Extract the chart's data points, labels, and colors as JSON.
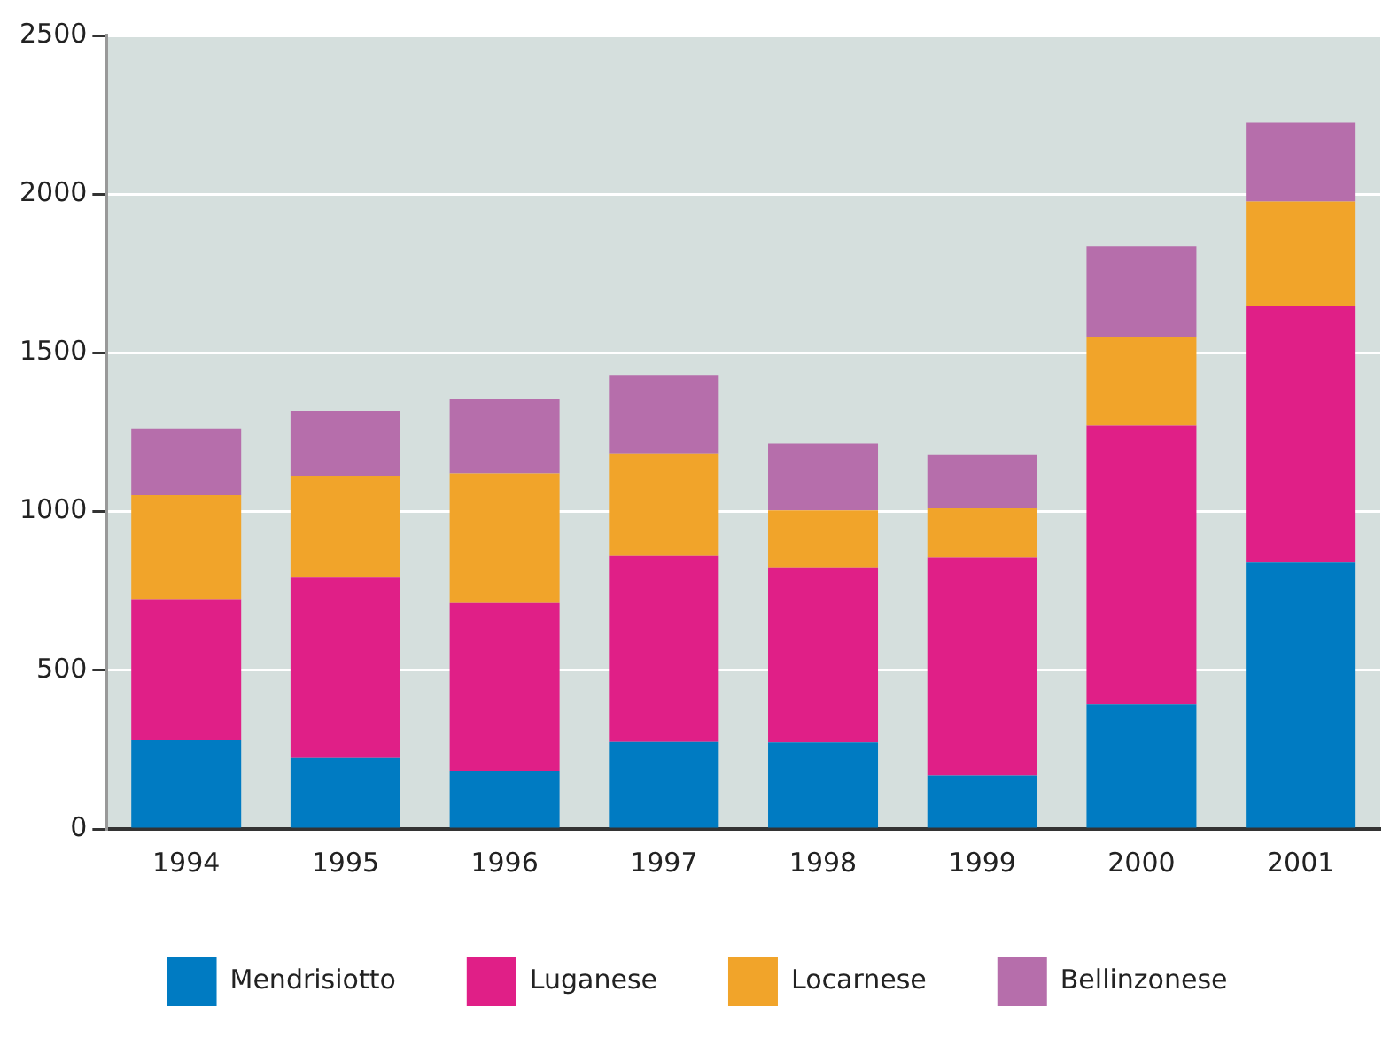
{
  "chart_data": {
    "type": "bar",
    "stacked": true,
    "categories": [
      "1994",
      "1995",
      "1996",
      "1997",
      "1998",
      "1999",
      "2000",
      "2001"
    ],
    "series": [
      {
        "name": "Mendrisiotto",
        "color": "#007bc2",
        "values": [
          282,
          224,
          183,
          274,
          273,
          169,
          393,
          839
        ]
      },
      {
        "name": "Luganese",
        "color": "#e01f87",
        "values": [
          442,
          568,
          529,
          586,
          551,
          686,
          878,
          810
        ]
      },
      {
        "name": "Locarnese",
        "color": "#f1a42a",
        "values": [
          328,
          321,
          408,
          321,
          180,
          155,
          279,
          328
        ]
      },
      {
        "name": "Bellinzonese",
        "color": "#b66eab",
        "values": [
          210,
          204,
          234,
          250,
          211,
          168,
          285,
          248
        ]
      }
    ],
    "ylim": [
      0,
      2500
    ],
    "yticks": [
      0,
      500,
      1000,
      1500,
      2000,
      2500
    ],
    "grid": "y",
    "legend": "bottom"
  }
}
